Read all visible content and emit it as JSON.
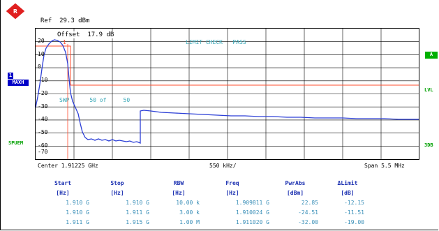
{
  "header": {
    "ref_label": "Ref  29.3 dBm",
    "offset_label": "Offset  17.9 dB"
  },
  "trace_panel": {
    "limit_check": "LIMIT CHECK   PASS",
    "sweep": "SWP      50 of     50",
    "marker_label": "1"
  },
  "y_axis": {
    "labels": [
      "20",
      "10",
      "0",
      "-10",
      "-20",
      "-30",
      "-40",
      "-50",
      "-60",
      "-70"
    ]
  },
  "left_annotations": {
    "trace_number": "1",
    "trace_mode": "MAXH",
    "mode": "SPUEM"
  },
  "right_annotations": {
    "a_badge": "A",
    "lvl": "LVL",
    "three_db": "3DB"
  },
  "x_axis": {
    "center": "Center 1.91225 GHz",
    "per_div": "550 kHz/",
    "span": "Span 5.5 MHz"
  },
  "table": {
    "headers": [
      "Start",
      "Stop",
      "RBW",
      "Freq",
      "PwrAbs",
      "ΔLimit"
    ],
    "units": [
      "[Hz]",
      "[Hz]",
      "[Hz]",
      "[Hz]",
      "[dBm]",
      "[dB]"
    ],
    "rows": [
      [
        "1.910 G",
        "1.910 G",
        "10.00 k",
        "1.909811 G",
        "22.85",
        "-12.15"
      ],
      [
        "1.910 G",
        "1.911 G",
        "3.00 k",
        "1.910024 G",
        "-24.51",
        "-11.51"
      ],
      [
        "1.911 G",
        "1.915 G",
        "1.00 M",
        "1.911020 G",
        "-32.00",
        "-19.00"
      ]
    ]
  },
  "colors": {
    "trace": "#2c3fd6",
    "limit_line": "#ff4c2e",
    "grid": "#000000",
    "table_text": "#3a8fb8",
    "header_text": "#1a2fb0",
    "side_green": "#00b000"
  }
}
